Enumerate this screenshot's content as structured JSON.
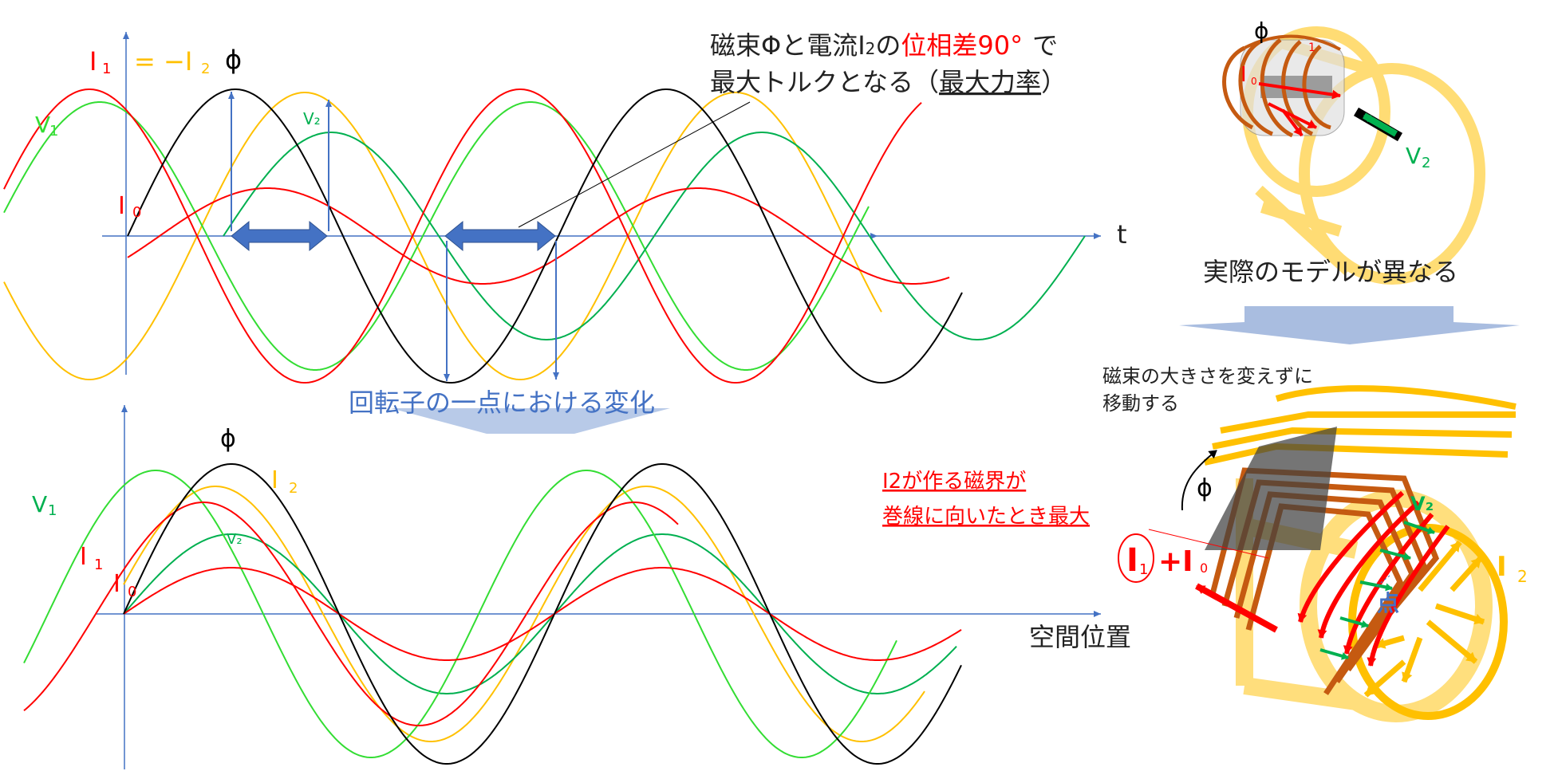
{
  "top_chart": {
    "axis_label": "t",
    "labels": {
      "I1": "I",
      "I1_sub": "1",
      "equals": "=",
      "minus_I2": "−I",
      "I2_sub": "2",
      "phi": "ϕ",
      "V1": "V",
      "V1_sub": "1",
      "V2": "V₂",
      "I0": "I",
      "I0_sub": "0"
    },
    "annotation": {
      "line1_part1": "磁束Φと電流I",
      "line1_sub": "2",
      "line1_part2": "の",
      "line1_red": "位相差90°",
      "line1_part3": "で",
      "line2_part1": "最大トルクとなる（",
      "line2_underline": "最大力率",
      "line2_part2": "）"
    }
  },
  "transition_label": "回転子の一点における変化",
  "bottom_chart": {
    "axis_label": "空間位置",
    "labels": {
      "phi": "ϕ",
      "I2": "I",
      "I2_sub": "2",
      "V1": "V",
      "V1_sub": "1",
      "V2": "V₂",
      "I1": "I",
      "I1_sub": "1",
      "I0": "I",
      "I0_sub": "0"
    }
  },
  "right_top": {
    "phi": "ϕ",
    "I0": "I",
    "I0_sub": "0",
    "I1_sub": "1",
    "V2": "V",
    "V2_sub": "2",
    "caption": "実際のモデルが異なる"
  },
  "right_bottom": {
    "note_line1": "磁束の大きさを変えずに",
    "note_line2": "移動する",
    "red_note_line1": "I2が作る磁界が",
    "red_note_line2": "巻線に向いたとき最大",
    "phi": "ϕ",
    "V2": "V₂",
    "I2": "I",
    "I2_sub": "2",
    "I1": "I",
    "I1_sub": "1",
    "plus": "+I",
    "I0_sub": "0",
    "point": "点"
  },
  "colors": {
    "I1": "#ff0000",
    "I2": "#ffc000",
    "phi": "#000000",
    "V1": "#33dd33",
    "V2": "#00b050",
    "I0": "#ff0000",
    "axis": "#4472c4",
    "arrow": "#4472c4",
    "coil": "#c55a11",
    "frame": "#ffd966"
  }
}
